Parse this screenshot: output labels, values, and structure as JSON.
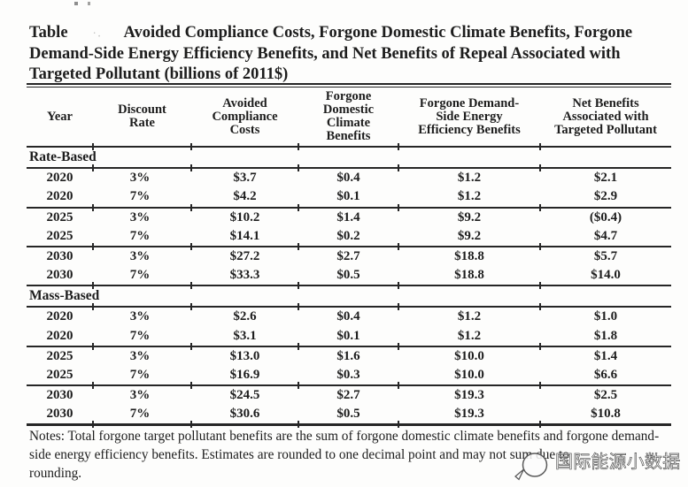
{
  "title": {
    "label": "Table",
    "line1_rest": "Avoided Compliance Costs, Forgone Domestic Climate Benefits, Forgone",
    "line2": "Demand-Side Energy Efficiency Benefits, and Net Benefits of Repeal Associated with",
    "line3": "Targeted Pollutant (billions of 2011$)"
  },
  "table": {
    "columns": [
      "Year",
      "Discount\nRate",
      "Avoided\nCompliance\nCosts",
      "Forgone\nDomestic\nClimate\nBenefits",
      "Forgone Demand-\nSide Energy\nEfficiency Benefits",
      "Net Benefits\nAssociated with\nTargeted Pollutant"
    ],
    "sections": [
      {
        "label": "Rate-Based",
        "groups": [
          [
            {
              "year": "2020",
              "rate": "3%",
              "values": [
                "$3.7",
                "$0.4",
                "$1.2",
                "$2.1"
              ]
            },
            {
              "year": "2020",
              "rate": "7%",
              "values": [
                "$4.2",
                "$0.1",
                "$1.2",
                "$2.9"
              ]
            }
          ],
          [
            {
              "year": "2025",
              "rate": "3%",
              "values": [
                "$10.2",
                "$1.4",
                "$9.2",
                "($0.4)"
              ]
            },
            {
              "year": "2025",
              "rate": "7%",
              "values": [
                "$14.1",
                "$0.2",
                "$9.2",
                "$4.7"
              ]
            }
          ],
          [
            {
              "year": "2030",
              "rate": "3%",
              "values": [
                "$27.2",
                "$2.7",
                "$18.8",
                "$5.7"
              ]
            },
            {
              "year": "2030",
              "rate": "7%",
              "values": [
                "$33.3",
                "$0.5",
                "$18.8",
                "$14.0"
              ]
            }
          ]
        ]
      },
      {
        "label": "Mass-Based",
        "groups": [
          [
            {
              "year": "2020",
              "rate": "3%",
              "values": [
                "$2.6",
                "$0.4",
                "$1.2",
                "$1.0"
              ]
            },
            {
              "year": "2020",
              "rate": "7%",
              "values": [
                "$3.1",
                "$0.1",
                "$1.2",
                "$1.8"
              ]
            }
          ],
          [
            {
              "year": "2025",
              "rate": "3%",
              "values": [
                "$13.0",
                "$1.6",
                "$10.0",
                "$1.4"
              ]
            },
            {
              "year": "2025",
              "rate": "7%",
              "values": [
                "$16.9",
                "$0.3",
                "$10.0",
                "$6.6"
              ]
            }
          ],
          [
            {
              "year": "2030",
              "rate": "3%",
              "values": [
                "$24.5",
                "$2.7",
                "$19.3",
                "$2.5"
              ]
            },
            {
              "year": "2030",
              "rate": "7%",
              "values": [
                "$30.6",
                "$0.5",
                "$19.3",
                "$10.8"
              ]
            }
          ]
        ]
      }
    ]
  },
  "notes_lines": [
    "Notes: Total forgone target pollutant benefits are the sum of forgone domestic climate benefits and forgone demand-",
    "side energy efficiency benefits. Estimates are rounded to one decimal point and may not sum due to",
    "rounding."
  ],
  "watermark": {
    "text": "国际能源小数据",
    "icon": "magnifier-icon"
  },
  "colors": {
    "text": "#1d1d1d",
    "rule": "#262626",
    "watermark_stroke": "#4d4d4d"
  }
}
